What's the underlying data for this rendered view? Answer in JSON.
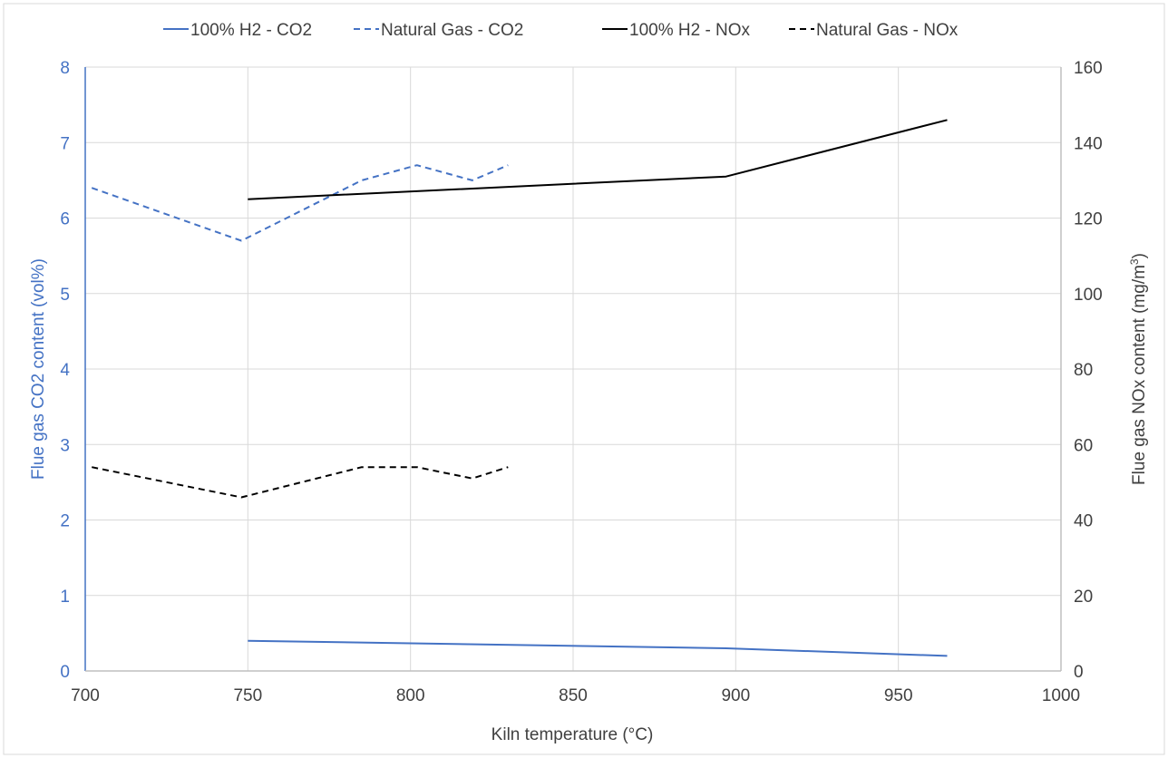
{
  "chart_data": {
    "type": "line",
    "xlabel": "Kiln temperature (°C)",
    "ylabel_left": "Flue gas CO2 content (vol%)",
    "ylabel_right_parts": [
      "Flue gas NOx content (mg/m",
      "3",
      ")"
    ],
    "xlim": [
      700,
      1000
    ],
    "ylim_left": [
      0,
      8
    ],
    "ylim_right": [
      0,
      160
    ],
    "x_ticks": [
      "700",
      "750",
      "800",
      "850",
      "900",
      "950",
      "1000"
    ],
    "y_left_ticks": [
      "0",
      "1",
      "2",
      "3",
      "4",
      "5",
      "6",
      "7",
      "8"
    ],
    "y_right_ticks": [
      "0",
      "20",
      "40",
      "60",
      "80",
      "100",
      "120",
      "140",
      "160"
    ],
    "grid": "vertical",
    "legend_position": "top",
    "colors": {
      "blue": "#4472c4",
      "black": "#000000",
      "grid": "#d9d9d9",
      "left_axis_text": "#4472c4",
      "text": "#404040"
    },
    "series": [
      {
        "name": "100% H2 - CO2",
        "axis": "left",
        "color": "#4472c4",
        "dash": "solid",
        "points": [
          [
            750,
            0.4
          ],
          [
            897,
            0.3
          ],
          [
            965,
            0.2
          ]
        ]
      },
      {
        "name": "Natural Gas - CO2",
        "axis": "left",
        "color": "#4472c4",
        "dash": "dashed",
        "points": [
          [
            702,
            6.4
          ],
          [
            748,
            5.7
          ],
          [
            785,
            6.5
          ],
          [
            802,
            6.7
          ],
          [
            819,
            6.5
          ],
          [
            830,
            6.7
          ]
        ]
      },
      {
        "name": "100% H2 - NOx",
        "axis": "right",
        "color": "#000000",
        "dash": "solid",
        "points": [
          [
            750,
            125
          ],
          [
            897,
            131
          ],
          [
            965,
            146
          ]
        ]
      },
      {
        "name": "Natural Gas - NOx",
        "axis": "right",
        "color": "#000000",
        "dash": "dashed",
        "points": [
          [
            702,
            54
          ],
          [
            748,
            46
          ],
          [
            785,
            54
          ],
          [
            802,
            54
          ],
          [
            819,
            51
          ],
          [
            830,
            54
          ]
        ]
      }
    ]
  }
}
